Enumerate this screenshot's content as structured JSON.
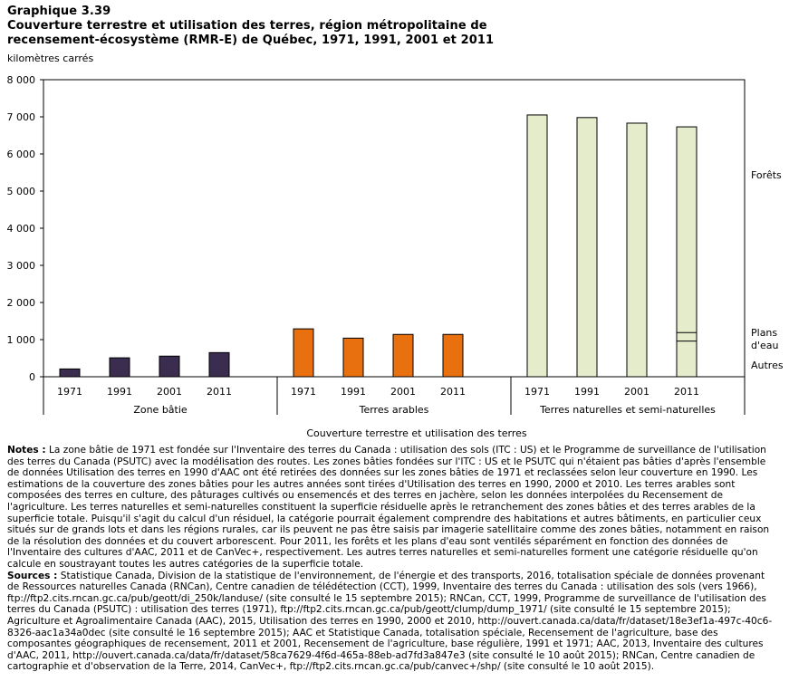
{
  "header": {
    "label": "Graphique  3.39",
    "line1": "Couverture terrestre et utilisation des terres, région métropolitaine de",
    "line2": "recensement-écosystème (RMR-E) de Québec, 1971, 1991, 2001 et 2011"
  },
  "unit_label": "kilomètres carrés",
  "chart_data": {
    "type": "bar",
    "title": "Couverture terrestre et utilisation des terres, région métropolitaine de recensement-écosystème (RMR-E) de Québec, 1971, 1991, 2001 et 2011",
    "xlabel": "Couverture terrestre et utilisation des terres",
    "ylabel": "kilomètres carrés",
    "ylim": [
      0,
      8000
    ],
    "yticks": [
      0,
      1000,
      2000,
      3000,
      4000,
      5000,
      6000,
      7000,
      8000
    ],
    "ytick_labels": [
      "0",
      "1 000",
      "2 000",
      "3 000",
      "4 000",
      "5 000",
      "6 000",
      "7 000",
      "8 000"
    ],
    "years": [
      "1971",
      "1991",
      "2001",
      "2011"
    ],
    "groups": [
      {
        "name": "Zone bâtie",
        "color": "#3b2d4f",
        "values": [
          210,
          510,
          555,
          650
        ]
      },
      {
        "name": "Terres arables",
        "color": "#e8700f",
        "values": [
          1290,
          1040,
          1140,
          1140
        ]
      },
      {
        "name": "Terres naturelles et semi-naturelles",
        "color": "#e4eccc",
        "values": [
          7050,
          6980,
          6830,
          6730
        ]
      }
    ],
    "stacked_2011_natural": [
      {
        "name": "Autres",
        "value": 960
      },
      {
        "name": "Plans d'eau",
        "value": 230
      },
      {
        "name": "Forêts",
        "value": 5540
      }
    ],
    "annotations": {
      "forets": "Forêts",
      "plans1": "Plans",
      "plans2": "d'eau",
      "autres": "Autres"
    }
  },
  "notes": {
    "notes_label": "Notes :",
    "notes_text": " La zone bâtie de 1971 est fondée sur l'Inventaire des terres du Canada : utilisation des sols (ITC : US) et le Programme de surveillance de l'utilisation des terres du Canada (PSUTC) avec la modélisation des routes. Les zones bâties fondées sur l'ITC : US et le PSUTC qui n'étaient pas bâties d'après l'ensemble de données Utilisation des terres en 1990 d'AAC ont été retirées des données sur les zones bâties de 1971 et reclassées selon leur couverture en 1990. Les estimations de la couverture des zones bâties pour les autres années sont tirées d'Utilisation des terres en 1990, 2000 et 2010. Les terres arables sont composées des terres en culture, des pâturages cultivés ou ensemencés et des terres en jachère, selon les données interpolées du Recensement de l'agriculture. Les terres naturelles et semi-naturelles constituent la superficie résiduelle après le retranchement des zones bâties et des terres arables de la superficie totale. Puisqu'il s'agit du calcul d'un résiduel, la catégorie pourrait également comprendre des habitations et autres bâtiments, en particulier ceux situés sur de grands lots et dans les régions rurales, car ils peuvent ne pas être saisis par imagerie satellitaire comme des zones bâties, notamment en raison de la résolution des données et du couvert arborescent. Pour 2011, les forêts et les plans d'eau sont ventilés séparément en fonction des données de l'Inventaire des cultures d'AAC, 2011 et de CanVec+, respectivement. Les autres terres naturelles et semi-naturelles forment une catégorie résiduelle qu'on calcule en soustrayant toutes les autres catégories de la superficie totale.",
    "sources_label": "Sources :",
    "sources_text": " Statistique Canada, Division de la statistique de l'environnement, de l'énergie et des transports, 2016, totalisation spéciale de données provenant de Ressources naturelles Canada (RNCan), Centre canadien de télédétection (CCT), 1999, Inventaire des terres du Canada : utilisation des sols (vers 1966), ftp://ftp2.cits.rncan.gc.ca/pub/geott/di_250k/landuse/ (site consulté le 15 septembre 2015); RNCan, CCT, 1999, Programme de surveillance de l'utilisation des terres du Canada (PSUTC) : utilisation des terres (1971), ftp://ftp2.cits.rncan.gc.ca/pub/geott/clump/dump_1971/ (site consulté le 15 septembre 2015); Agriculture et Agroalimentaire Canada (AAC), 2015, Utilisation des terres en 1990, 2000 et 2010, http://ouvert.canada.ca/data/fr/dataset/18e3ef1a-497c-40c6-8326-aac1a34a0dec (site consulté le 16 septembre 2015); AAC et Statistique Canada, totalisation spéciale, Recensement de l'agriculture, base des composantes géographiques de recensement, 2011 et 2001, Recensement de l'agriculture, base régulière, 1991 et 1971; AAC, 2013, Inventaire des cultures d'AAC, 2011, http://ouvert.canada.ca/data/fr/dataset/58ca7629-4f6d-465a-88eb-ad7fd3a847e3 (site consulté le 10 août 2015); RNCan, Centre canadien de cartographie et d'observation de la Terre, 2014, CanVec+, ftp://ftp2.cits.rncan.gc.ca/pub/canvec+/shp/ (site consulté le 10 août 2015)."
  }
}
